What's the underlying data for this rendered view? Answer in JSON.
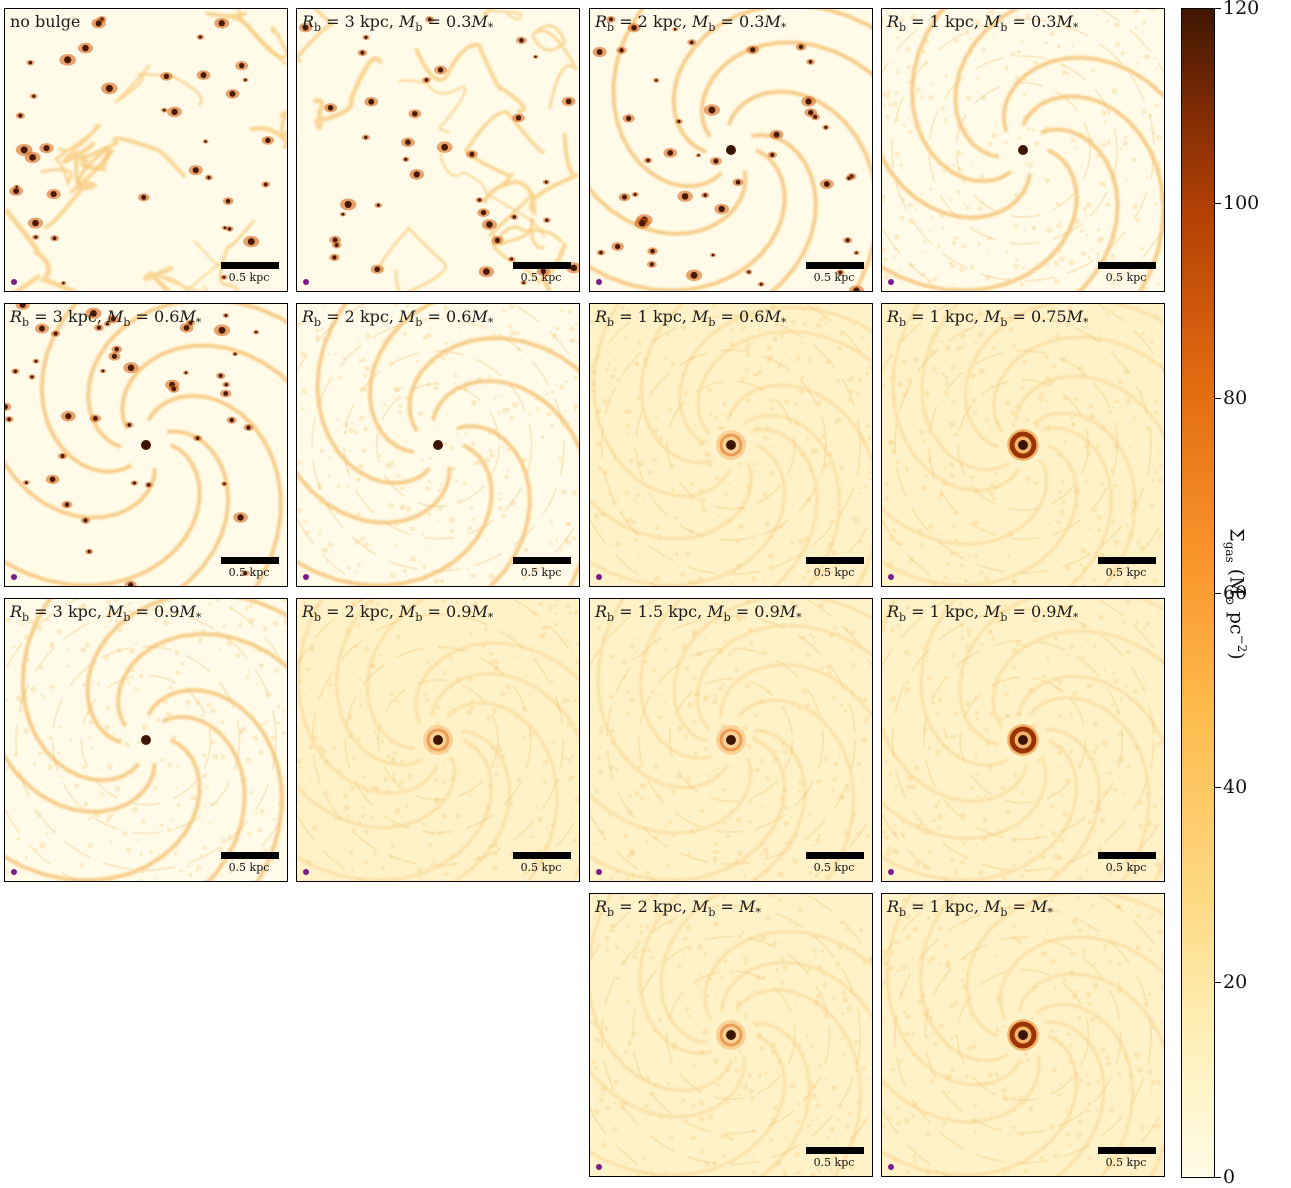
{
  "scale_bar_label": "0.5 kpc",
  "panels": [
    {
      "label": "no bulge",
      "rb": "",
      "mb": "",
      "col": 0,
      "row": 0,
      "state": "clumpy"
    },
    {
      "label": "",
      "rb": "3",
      "mb": "0.3",
      "col": 1,
      "row": 0,
      "state": "clumpy"
    },
    {
      "label": "",
      "rb": "2",
      "mb": "0.3",
      "col": 2,
      "row": 0,
      "state": "spiral-clumpy"
    },
    {
      "label": "",
      "rb": "1",
      "mb": "0.3",
      "col": 3,
      "row": 0,
      "state": "spiral-smooth"
    },
    {
      "label": "",
      "rb": "3",
      "mb": "0.6",
      "col": 0,
      "row": 1,
      "state": "spiral-clumpy"
    },
    {
      "label": "",
      "rb": "2",
      "mb": "0.6",
      "col": 1,
      "row": 1,
      "state": "spiral-smooth"
    },
    {
      "label": "",
      "rb": "1",
      "mb": "0.6",
      "col": 2,
      "row": 1,
      "state": "smooth-ring"
    },
    {
      "label": "",
      "rb": "1",
      "mb": "0.75",
      "col": 3,
      "row": 1,
      "state": "smooth-bigring"
    },
    {
      "label": "",
      "rb": "3",
      "mb": "0.9",
      "col": 0,
      "row": 2,
      "state": "spiral-smooth"
    },
    {
      "label": "",
      "rb": "2",
      "mb": "0.9",
      "col": 1,
      "row": 2,
      "state": "smooth-ring"
    },
    {
      "label": "",
      "rb": "1.5",
      "mb": "0.9",
      "col": 2,
      "row": 2,
      "state": "smooth-ring"
    },
    {
      "label": "",
      "rb": "1",
      "mb": "0.9",
      "col": 3,
      "row": 2,
      "state": "smooth-bigring"
    },
    {
      "label": "",
      "rb": "2",
      "mb": "",
      "col": 2,
      "row": 3,
      "state": "smooth-ring"
    },
    {
      "label": "",
      "rb": "1",
      "mb": "",
      "col": 3,
      "row": 3,
      "state": "smooth-bigring"
    }
  ],
  "colorbar": {
    "ticks": [
      "0",
      "20",
      "40",
      "60",
      "80",
      "100",
      "120"
    ],
    "label_symbol": "Σ",
    "label_sub": "gas",
    "label_units": "(M",
    "label_units_sun": "⊙",
    "label_units_rest": " pc",
    "label_units_exp": "−2",
    "label_close": ")",
    "colors": [
      "#fffbe6",
      "#fed77f",
      "#f9952a",
      "#b64205",
      "#401703"
    ]
  }
}
